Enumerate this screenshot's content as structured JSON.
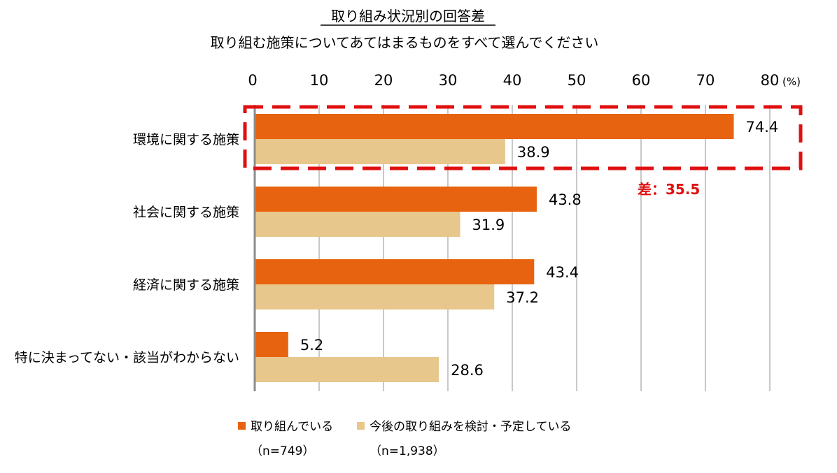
{
  "colors": {
    "series_1": "#E8630F",
    "series_2": "#E8C78D",
    "grid": "#C8C8C8",
    "axis": "#8C8C8C",
    "highlight": "#E01010"
  },
  "chart_data": {
    "type": "bar",
    "orientation": "horizontal",
    "title": "取り組み状況別の回答差",
    "subtitle": "取り組む施策についてあてはまるものをすべて選んでください",
    "unit_label": "(%)",
    "xlim": [
      0,
      80
    ],
    "ticks": [
      0,
      10,
      20,
      30,
      40,
      50,
      60,
      70,
      80
    ],
    "grid": true,
    "legend_position": "bottom",
    "categories": [
      "環境に関する施策",
      "社会に関する施策",
      "経済に関する施策",
      "特に決まってない・該当がわからない"
    ],
    "series": [
      {
        "name": "取り組んでいる",
        "n_label": "（n=749）",
        "values": [
          74.4,
          43.8,
          43.4,
          5.2
        ]
      },
      {
        "name": "今後の取り組みを検討・予定している",
        "n_label": "（n=1,938）",
        "values": [
          38.9,
          31.9,
          37.2,
          28.6
        ]
      }
    ],
    "annotation": {
      "text": "差：35.5",
      "highlighted_category": "環境に関する施策"
    }
  }
}
